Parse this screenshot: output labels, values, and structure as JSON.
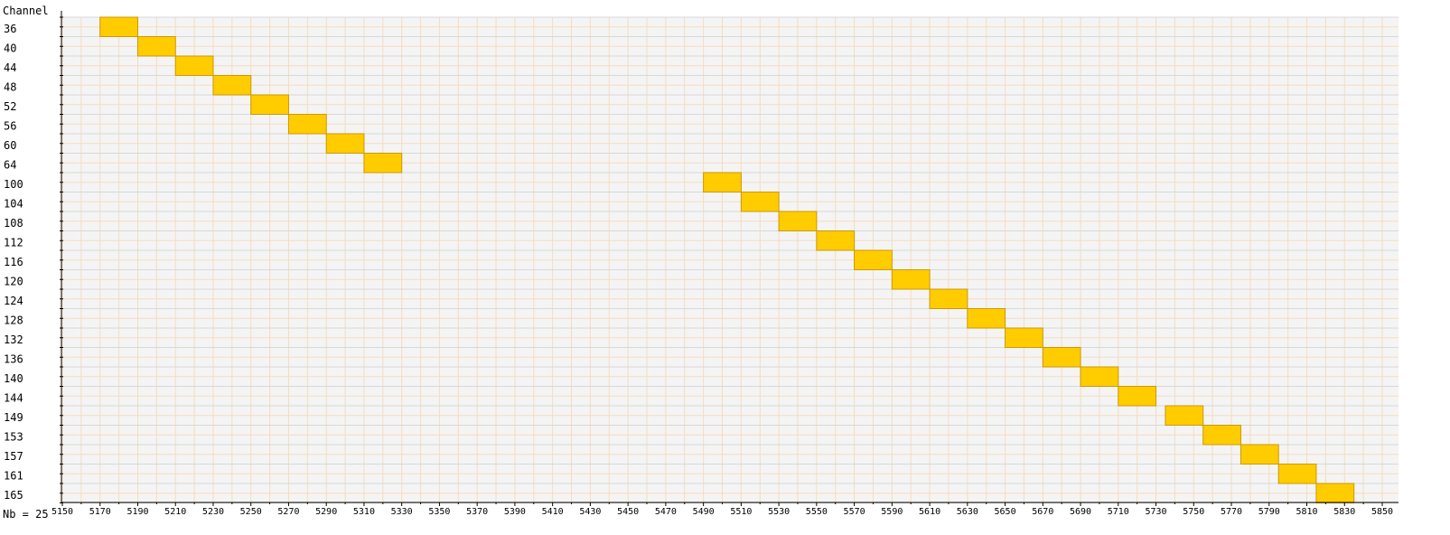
{
  "chart_data": {
    "type": "bar",
    "orientation": "horizontal-range",
    "y_axis_title": "Channel",
    "footer": "Nb = 25",
    "x_ticks": [
      5150,
      5170,
      5190,
      5210,
      5230,
      5250,
      5270,
      5290,
      5310,
      5330,
      5350,
      5370,
      5390,
      5410,
      5430,
      5450,
      5470,
      5490,
      5510,
      5530,
      5550,
      5570,
      5590,
      5610,
      5630,
      5650,
      5670,
      5690,
      5710,
      5730,
      5750,
      5770,
      5790,
      5810,
      5830,
      5850
    ],
    "xlim": [
      5140,
      5860
    ],
    "channels": [
      {
        "label": "36",
        "start": 5170,
        "end": 5190
      },
      {
        "label": "40",
        "start": 5190,
        "end": 5210
      },
      {
        "label": "44",
        "start": 5210,
        "end": 5230
      },
      {
        "label": "48",
        "start": 5230,
        "end": 5250
      },
      {
        "label": "52",
        "start": 5250,
        "end": 5270
      },
      {
        "label": "56",
        "start": 5270,
        "end": 5290
      },
      {
        "label": "60",
        "start": 5290,
        "end": 5310
      },
      {
        "label": "64",
        "start": 5310,
        "end": 5330
      },
      {
        "label": "100",
        "start": 5490,
        "end": 5510
      },
      {
        "label": "104",
        "start": 5510,
        "end": 5530
      },
      {
        "label": "108",
        "start": 5530,
        "end": 5550
      },
      {
        "label": "112",
        "start": 5550,
        "end": 5570
      },
      {
        "label": "116",
        "start": 5570,
        "end": 5590
      },
      {
        "label": "120",
        "start": 5590,
        "end": 5610
      },
      {
        "label": "124",
        "start": 5610,
        "end": 5630
      },
      {
        "label": "128",
        "start": 5630,
        "end": 5650
      },
      {
        "label": "132",
        "start": 5650,
        "end": 5670
      },
      {
        "label": "136",
        "start": 5670,
        "end": 5690
      },
      {
        "label": "140",
        "start": 5690,
        "end": 5710
      },
      {
        "label": "144",
        "start": 5710,
        "end": 5730
      },
      {
        "label": "149",
        "start": 5735,
        "end": 5755
      },
      {
        "label": "153",
        "start": 5755,
        "end": 5775
      },
      {
        "label": "157",
        "start": 5775,
        "end": 5795
      },
      {
        "label": "161",
        "start": 5795,
        "end": 5815
      },
      {
        "label": "165",
        "start": 5815,
        "end": 5835
      }
    ],
    "colors": {
      "bar_fill": "#ffcc00",
      "bar_stroke": "#cc9900",
      "plot_bg": "#f4f4f4",
      "grid_major": "#d8d8d8",
      "grid_minor": "#f5dcc0",
      "axis": "#000000"
    }
  }
}
